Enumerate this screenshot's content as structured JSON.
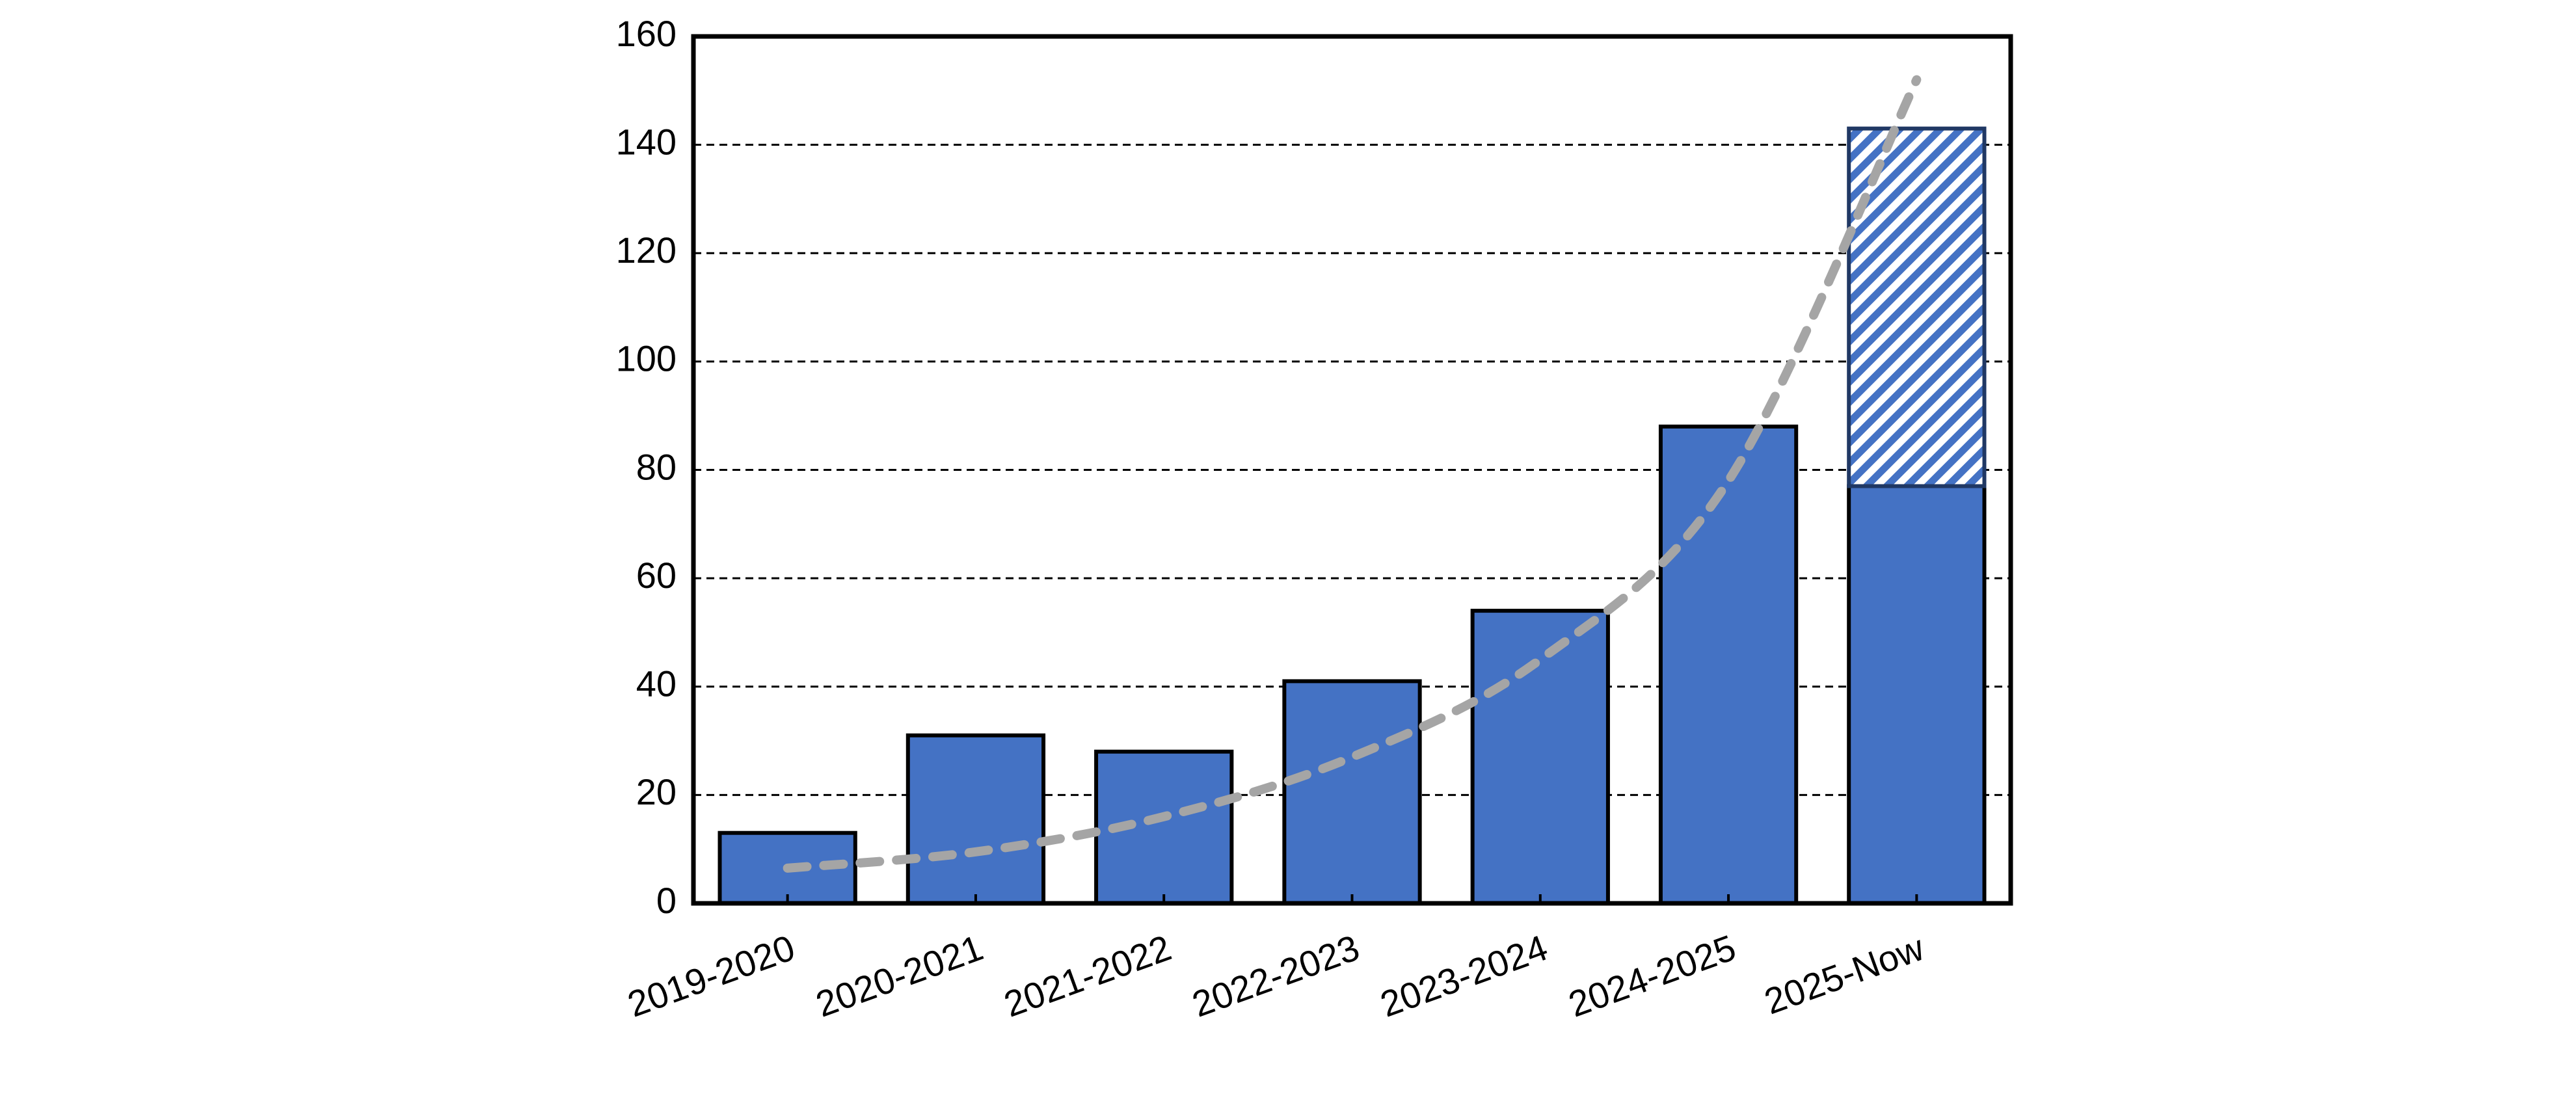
{
  "chart_data": {
    "type": "bar",
    "stacked": true,
    "categories": [
      "2019-2020",
      "2020-2021",
      "2021-2022",
      "2022-2023",
      "2023-2024",
      "2024-2025",
      "2025-Now"
    ],
    "series": [
      {
        "color": "#4472c4",
        "values": [
          13,
          31,
          28,
          41,
          54,
          88,
          77
        ]
      },
      {
        "color": "#4472c4",
        "pattern": "hatch",
        "values": [
          null,
          null,
          null,
          null,
          null,
          null,
          66
        ]
      },
      {
        "type": "line",
        "dashed": true,
        "smooth": true,
        "color": "#a5a5a5",
        "values": [
          6.5,
          9.5,
          16,
          27,
          45,
          78,
          152
        ]
      }
    ],
    "ylim": [
      0,
      160
    ],
    "yticks": [
      0,
      20,
      40,
      60,
      80,
      100,
      120,
      140,
      160
    ],
    "grid": true
  }
}
